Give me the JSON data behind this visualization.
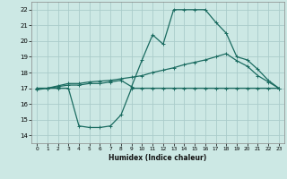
{
  "title": "",
  "xlabel": "Humidex (Indice chaleur)",
  "background_color": "#cce8e4",
  "grid_color": "#aaccca",
  "line_color": "#1a6b60",
  "xlim": [
    -0.5,
    23.5
  ],
  "ylim": [
    13.5,
    22.5
  ],
  "yticks": [
    14,
    15,
    16,
    17,
    18,
    19,
    20,
    21,
    22
  ],
  "xticks": [
    0,
    1,
    2,
    3,
    4,
    5,
    6,
    7,
    8,
    9,
    10,
    11,
    12,
    13,
    14,
    15,
    16,
    17,
    18,
    19,
    20,
    21,
    22,
    23
  ],
  "curve1_x": [
    0,
    1,
    2,
    3,
    4,
    5,
    6,
    7,
    8,
    9,
    10,
    11,
    12,
    13,
    14,
    15,
    16,
    17,
    18,
    19,
    20,
    21,
    22,
    23
  ],
  "curve1_y": [
    16.9,
    17.0,
    17.0,
    17.0,
    14.6,
    14.5,
    14.5,
    14.6,
    15.3,
    17.0,
    17.0,
    17.0,
    17.0,
    17.0,
    17.0,
    17.0,
    17.0,
    17.0,
    17.0,
    17.0,
    17.0,
    17.0,
    17.0,
    17.0
  ],
  "curve2_x": [
    0,
    1,
    2,
    3,
    4,
    5,
    6,
    7,
    8,
    9,
    10,
    11,
    12,
    13,
    14,
    15,
    16,
    17,
    18,
    19,
    20,
    21,
    22,
    23
  ],
  "curve2_y": [
    17.0,
    17.0,
    17.1,
    17.2,
    17.2,
    17.3,
    17.3,
    17.4,
    17.5,
    17.1,
    18.8,
    20.4,
    19.8,
    22.0,
    22.0,
    22.0,
    22.0,
    21.2,
    20.5,
    19.0,
    18.8,
    18.2,
    17.5,
    17.0
  ],
  "curve3_x": [
    0,
    1,
    2,
    3,
    4,
    5,
    6,
    7,
    8,
    9,
    10,
    11,
    12,
    13,
    14,
    15,
    16,
    17,
    18,
    19,
    20,
    21,
    22,
    23
  ],
  "curve3_y": [
    17.0,
    17.0,
    17.15,
    17.3,
    17.3,
    17.4,
    17.45,
    17.5,
    17.6,
    17.7,
    17.8,
    18.0,
    18.15,
    18.3,
    18.5,
    18.65,
    18.8,
    19.0,
    19.2,
    18.75,
    18.4,
    17.8,
    17.4,
    17.0
  ]
}
